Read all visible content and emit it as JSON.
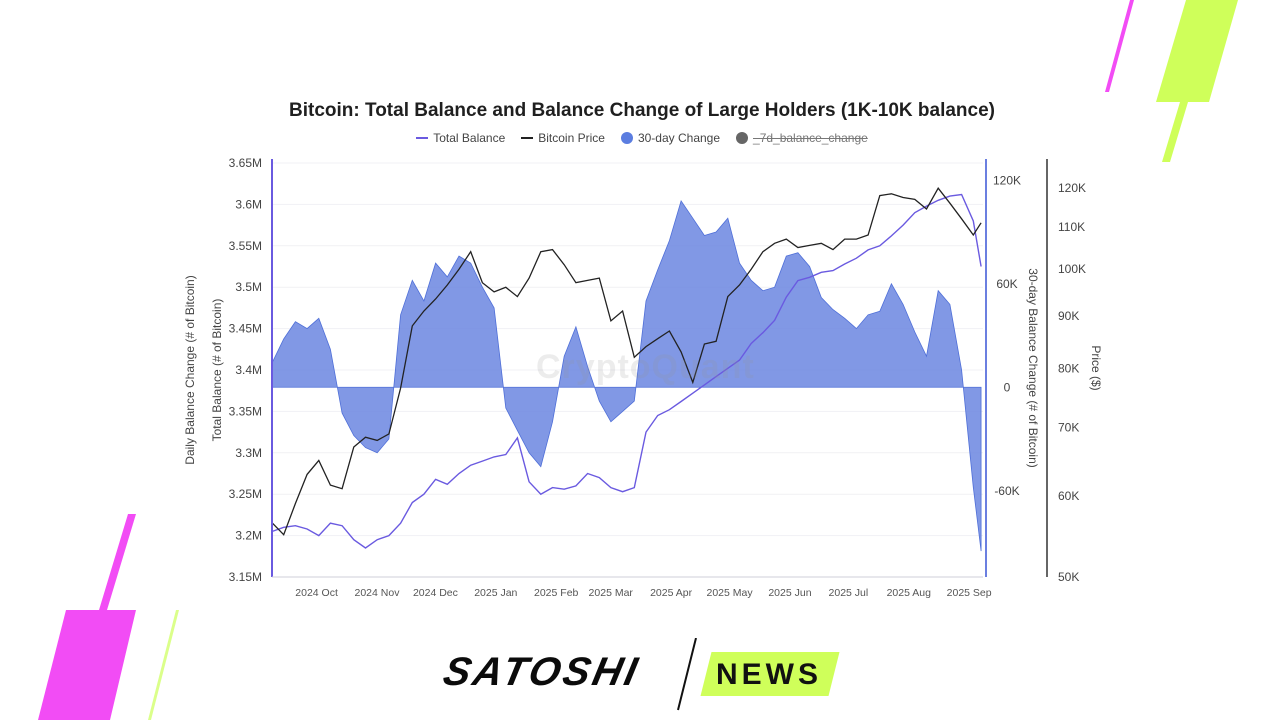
{
  "colors": {
    "total_balance": "#6a5ae0",
    "bitcoin_price": "#222222",
    "change_fill": "#6b86e0",
    "change_edge": "#4f6fd8",
    "seven_day": "#666666",
    "brand_lime": "#cfff5a",
    "brand_magenta": "#f24cf5"
  },
  "legend": [
    {
      "label": "Total Balance",
      "icon": "line",
      "color": "#6a5ae0",
      "struck": false
    },
    {
      "label": "Bitcoin Price",
      "icon": "line",
      "color": "#222222",
      "struck": false
    },
    {
      "label": "30-day Change",
      "icon": "dot",
      "color": "#5b7de0",
      "struck": false
    },
    {
      "label": "_7d_balance_change",
      "icon": "dot",
      "color": "#666666",
      "struck": true
    }
  ],
  "watermark": "CryptoQuant",
  "brand": {
    "name": "SATOSHI",
    "tag": "NEWS"
  },
  "chart_data": {
    "type": "line",
    "title": "Bitcoin: Total Balance and Balance Change of Large Holders (1K-10K balance)",
    "x_ticks": [
      "2024 Oct",
      "2024 Nov",
      "2024 Dec",
      "2025 Jan",
      "2025 Feb",
      "2025 Mar",
      "2025 Apr",
      "2025 May",
      "2025 Jun",
      "2025 Jul",
      "2025 Aug",
      "2025 Sep"
    ],
    "x_range": [
      "2024-09-04",
      "2025-09-04"
    ],
    "axes": {
      "left": {
        "label_outer": "Daily Balance Change (# of Bitcoin)",
        "label_inner": "Total Balance (# of Bitcoin)",
        "ticks": [
          "3.65M",
          "3.6M",
          "3.55M",
          "3.5M",
          "3.45M",
          "3.4M",
          "3.35M",
          "3.3M",
          "3.25M",
          "3.2M",
          "3.15M"
        ],
        "range": [
          3150000,
          3650000
        ]
      },
      "right1": {
        "label": "30-day Balance Change (# of Bitcoin)",
        "ticks": [
          "120K",
          "60K",
          "0",
          "-60K"
        ],
        "tick_values": [
          120000,
          60000,
          0,
          -60000
        ],
        "range": [
          -110000,
          130000
        ]
      },
      "right2": {
        "label": "Price ($)",
        "scale": "log",
        "ticks": [
          "120K",
          "110K",
          "100K",
          "90K",
          "80K",
          "70K",
          "60K",
          "50K"
        ],
        "tick_values": [
          120000,
          110000,
          100000,
          90000,
          80000,
          70000,
          60000,
          50000
        ],
        "range": [
          50000,
          127000
        ]
      }
    },
    "grid": true,
    "legend_position": "top",
    "series": [
      {
        "name": "Total Balance",
        "axis": "left",
        "x": [
          "2024-09-04",
          "2024-09-10",
          "2024-09-16",
          "2024-09-22",
          "2024-09-28",
          "2024-10-04",
          "2024-10-10",
          "2024-10-16",
          "2024-10-22",
          "2024-10-28",
          "2024-11-03",
          "2024-11-09",
          "2024-11-15",
          "2024-11-21",
          "2024-11-27",
          "2024-12-03",
          "2024-12-09",
          "2024-12-15",
          "2024-12-21",
          "2024-12-27",
          "2025-01-02",
          "2025-01-08",
          "2025-01-14",
          "2025-01-20",
          "2025-01-26",
          "2025-02-01",
          "2025-02-07",
          "2025-02-13",
          "2025-02-19",
          "2025-02-25",
          "2025-03-03",
          "2025-03-09",
          "2025-03-15",
          "2025-03-21",
          "2025-03-27",
          "2025-04-02",
          "2025-04-08",
          "2025-04-14",
          "2025-04-20",
          "2025-04-26",
          "2025-05-02",
          "2025-05-08",
          "2025-05-14",
          "2025-05-20",
          "2025-05-26",
          "2025-06-01",
          "2025-06-07",
          "2025-06-13",
          "2025-06-19",
          "2025-06-25",
          "2025-07-01",
          "2025-07-07",
          "2025-07-13",
          "2025-07-19",
          "2025-07-25",
          "2025-07-31",
          "2025-08-06",
          "2025-08-12",
          "2025-08-18",
          "2025-08-24",
          "2025-08-30",
          "2025-09-03"
        ],
        "y": [
          3205000,
          3210000,
          3212000,
          3208000,
          3200000,
          3215000,
          3212000,
          3195000,
          3185000,
          3195000,
          3200000,
          3215000,
          3240000,
          3250000,
          3268000,
          3262000,
          3275000,
          3285000,
          3290000,
          3295000,
          3298000,
          3318000,
          3265000,
          3250000,
          3258000,
          3256000,
          3260000,
          3275000,
          3270000,
          3258000,
          3253000,
          3258000,
          3325000,
          3345000,
          3352000,
          3362000,
          3372000,
          3382000,
          3392000,
          3402000,
          3412000,
          3432000,
          3445000,
          3460000,
          3488000,
          3508000,
          3512000,
          3518000,
          3520000,
          3528000,
          3535000,
          3545000,
          3550000,
          3562000,
          3575000,
          3590000,
          3598000,
          3605000,
          3610000,
          3612000,
          3580000,
          3525000
        ]
      },
      {
        "name": "Bitcoin Price",
        "axis": "right2",
        "x": [
          "2024-09-04",
          "2024-09-10",
          "2024-09-16",
          "2024-09-22",
          "2024-09-28",
          "2024-10-04",
          "2024-10-10",
          "2024-10-16",
          "2024-10-22",
          "2024-10-28",
          "2024-11-03",
          "2024-11-09",
          "2024-11-15",
          "2024-11-21",
          "2024-11-27",
          "2024-12-03",
          "2024-12-09",
          "2024-12-15",
          "2024-12-21",
          "2024-12-27",
          "2025-01-02",
          "2025-01-08",
          "2025-01-14",
          "2025-01-20",
          "2025-01-26",
          "2025-02-01",
          "2025-02-07",
          "2025-02-13",
          "2025-02-19",
          "2025-02-25",
          "2025-03-03",
          "2025-03-09",
          "2025-03-15",
          "2025-03-21",
          "2025-03-27",
          "2025-04-02",
          "2025-04-08",
          "2025-04-14",
          "2025-04-20",
          "2025-04-26",
          "2025-05-02",
          "2025-05-08",
          "2025-05-14",
          "2025-05-20",
          "2025-05-26",
          "2025-06-01",
          "2025-06-07",
          "2025-06-13",
          "2025-06-19",
          "2025-06-25",
          "2025-07-01",
          "2025-07-07",
          "2025-07-13",
          "2025-07-19",
          "2025-07-25",
          "2025-07-31",
          "2025-08-06",
          "2025-08-12",
          "2025-08-18",
          "2025-08-24",
          "2025-08-30",
          "2025-09-03"
        ],
        "y": [
          56500,
          55000,
          59000,
          63000,
          65000,
          61500,
          61000,
          67000,
          68500,
          68000,
          69000,
          76500,
          88000,
          91000,
          93500,
          96500,
          100000,
          104000,
          97000,
          95000,
          96000,
          94000,
          98000,
          104000,
          104500,
          101000,
          97000,
          97500,
          98000,
          89000,
          91000,
          82000,
          84000,
          85500,
          87000,
          83000,
          77500,
          84500,
          85000,
          94000,
          96500,
          100000,
          104000,
          106000,
          107000,
          105000,
          105500,
          106000,
          104500,
          107000,
          107000,
          108000,
          118000,
          118500,
          117500,
          117000,
          114500,
          120000,
          116000,
          112000,
          108000,
          111000
        ]
      },
      {
        "name": "30-day Change",
        "axis": "right1",
        "x": [
          "2024-09-04",
          "2024-09-10",
          "2024-09-16",
          "2024-09-22",
          "2024-09-28",
          "2024-10-04",
          "2024-10-10",
          "2024-10-16",
          "2024-10-22",
          "2024-10-28",
          "2024-11-03",
          "2024-11-09",
          "2024-11-15",
          "2024-11-21",
          "2024-11-27",
          "2024-12-03",
          "2024-12-09",
          "2024-12-15",
          "2024-12-21",
          "2024-12-27",
          "2025-01-02",
          "2025-01-08",
          "2025-01-14",
          "2025-01-20",
          "2025-01-26",
          "2025-02-01",
          "2025-02-07",
          "2025-02-13",
          "2025-02-19",
          "2025-02-25",
          "2025-03-03",
          "2025-03-09",
          "2025-03-15",
          "2025-03-21",
          "2025-03-27",
          "2025-04-02",
          "2025-04-08",
          "2025-04-14",
          "2025-04-20",
          "2025-04-26",
          "2025-05-02",
          "2025-05-08",
          "2025-05-14",
          "2025-05-20",
          "2025-05-26",
          "2025-06-01",
          "2025-06-07",
          "2025-06-13",
          "2025-06-19",
          "2025-06-25",
          "2025-07-01",
          "2025-07-07",
          "2025-07-13",
          "2025-07-19",
          "2025-07-25",
          "2025-07-31",
          "2025-08-06",
          "2025-08-12",
          "2025-08-18",
          "2025-08-24",
          "2025-08-30",
          "2025-09-03"
        ],
        "y": [
          14000,
          28000,
          38000,
          34000,
          40000,
          22000,
          -15000,
          -28000,
          -35000,
          -38000,
          -30000,
          42000,
          62000,
          50000,
          72000,
          64000,
          76000,
          72000,
          58000,
          46000,
          -12000,
          -25000,
          -38000,
          -46000,
          -20000,
          18000,
          35000,
          12000,
          -8000,
          -20000,
          -14000,
          -8000,
          50000,
          68000,
          85000,
          108000,
          98000,
          88000,
          90000,
          98000,
          72000,
          62000,
          56000,
          58000,
          76000,
          78000,
          70000,
          52000,
          45000,
          40000,
          34000,
          42000,
          44000,
          60000,
          48000,
          32000,
          18000,
          56000,
          48000,
          10000,
          -58000,
          -95000
        ]
      }
    ]
  }
}
